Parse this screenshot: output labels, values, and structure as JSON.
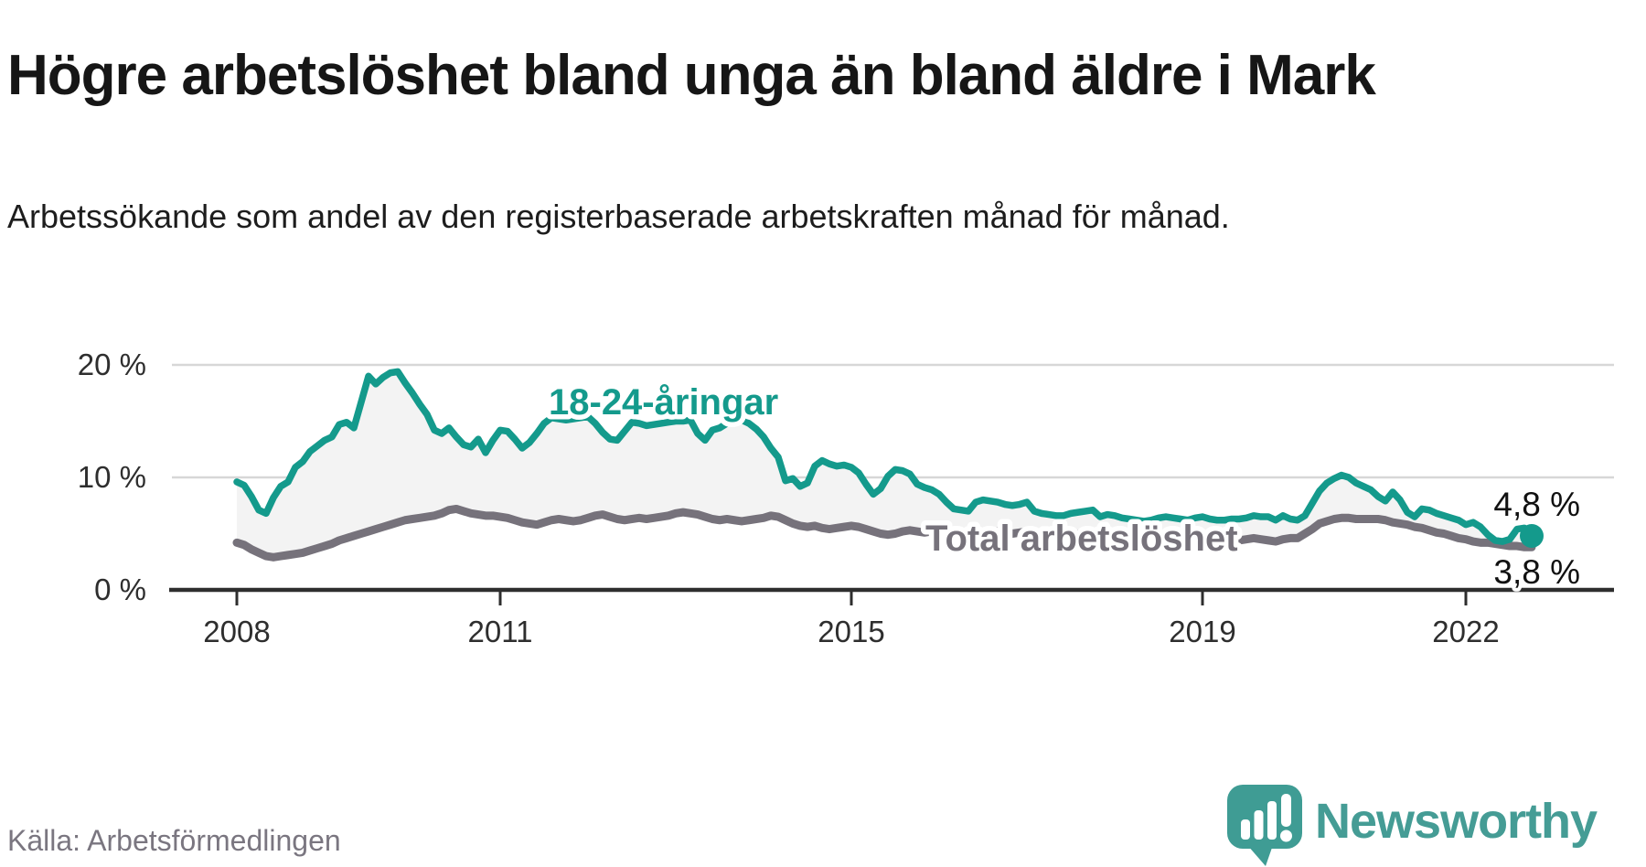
{
  "header": {
    "title": "Högre arbetslöshet bland unga än bland äldre i Mark",
    "subtitle": "Arbetssökande som andel av den registerbaserade arbetskraften månad för månad."
  },
  "source": {
    "label": "Källa: Arbetsförmedlingen"
  },
  "branding": {
    "name": "Newsworthy",
    "logo_icon": "speech-bubble-bar-chart",
    "text_color": "#459c95",
    "bubble_color": "#3f9c94"
  },
  "chart_data": {
    "type": "line",
    "unit": "percent",
    "frequency": "monthly",
    "period_start": "2008-01",
    "period_end": "2022-10",
    "grid": "horizontal",
    "ylim": [
      0,
      21.5
    ],
    "y_ticks": [
      "0 %",
      "10 %",
      "20 %"
    ],
    "y_tick_values": [
      0,
      10,
      20
    ],
    "x_ticks": [
      "2008",
      "2011",
      "2015",
      "2019",
      "2022"
    ],
    "area_fill_between": "#f3f3f3",
    "grid_color": "#d7d7d7",
    "axis_color": "#2e2e2e",
    "series": [
      {
        "name": "18-24-åringar",
        "color": "#149a8c",
        "end_label": "4,8 %",
        "end_value": 4.8,
        "values": [
          9.6,
          9.3,
          8.3,
          7.1,
          6.8,
          8.2,
          9.2,
          9.6,
          10.9,
          11.4,
          12.3,
          12.8,
          13.3,
          13.6,
          14.7,
          14.9,
          14.4,
          16.7,
          19.0,
          18.3,
          18.9,
          19.3,
          19.4,
          18.4,
          17.5,
          16.5,
          15.6,
          14.2,
          13.9,
          14.4,
          13.6,
          12.9,
          12.7,
          13.4,
          12.2,
          13.3,
          14.2,
          14.1,
          13.4,
          12.6,
          13.1,
          13.9,
          14.8,
          15.3,
          15.2,
          15.1,
          15.2,
          15.3,
          15.4,
          14.8,
          14.0,
          13.4,
          13.3,
          14.1,
          14.9,
          14.8,
          14.6,
          14.7,
          14.8,
          14.9,
          15.0,
          15.0,
          15.1,
          13.9,
          13.3,
          14.2,
          14.4,
          14.8,
          15.0,
          15.1,
          14.8,
          14.3,
          13.6,
          12.6,
          11.8,
          9.7,
          9.9,
          9.2,
          9.5,
          11.0,
          11.5,
          11.2,
          11.0,
          11.1,
          10.9,
          10.4,
          9.4,
          8.5,
          9.0,
          10.1,
          10.7,
          10.6,
          10.3,
          9.4,
          9.1,
          8.9,
          8.5,
          7.8,
          7.2,
          7.1,
          7.0,
          7.8,
          8.0,
          7.9,
          7.8,
          7.6,
          7.5,
          7.6,
          7.8,
          7.0,
          6.8,
          6.7,
          6.6,
          6.6,
          6.8,
          6.9,
          7.0,
          7.1,
          6.5,
          6.7,
          6.6,
          6.4,
          6.3,
          6.2,
          6.1,
          6.2,
          6.4,
          6.5,
          6.4,
          6.3,
          6.2,
          6.4,
          6.5,
          6.3,
          6.2,
          6.2,
          6.3,
          6.3,
          6.4,
          6.6,
          6.5,
          6.5,
          6.2,
          6.6,
          6.3,
          6.2,
          6.6,
          7.7,
          8.8,
          9.5,
          9.9,
          10.2,
          10.0,
          9.5,
          9.2,
          8.9,
          8.3,
          7.9,
          8.7,
          8.0,
          6.9,
          6.5,
          7.2,
          7.1,
          6.8,
          6.6,
          6.4,
          6.2,
          5.8,
          6.0,
          5.6,
          4.9,
          4.4,
          4.3,
          4.5,
          5.4,
          5.5,
          4.8
        ]
      },
      {
        "name": "Total arbetslöshet",
        "color": "#76727b",
        "end_label": "3,8 %",
        "end_value": 3.8,
        "values": [
          4.2,
          4.0,
          3.6,
          3.3,
          3.0,
          2.9,
          3.0,
          3.1,
          3.2,
          3.3,
          3.5,
          3.7,
          3.9,
          4.1,
          4.4,
          4.6,
          4.8,
          5.0,
          5.2,
          5.4,
          5.6,
          5.8,
          6.0,
          6.2,
          6.3,
          6.4,
          6.5,
          6.6,
          6.8,
          7.1,
          7.2,
          7.0,
          6.8,
          6.7,
          6.6,
          6.6,
          6.5,
          6.4,
          6.2,
          6.0,
          5.9,
          5.8,
          6.0,
          6.2,
          6.3,
          6.2,
          6.1,
          6.2,
          6.4,
          6.6,
          6.7,
          6.5,
          6.3,
          6.2,
          6.3,
          6.4,
          6.3,
          6.4,
          6.5,
          6.6,
          6.8,
          6.9,
          6.8,
          6.7,
          6.5,
          6.3,
          6.2,
          6.3,
          6.2,
          6.1,
          6.2,
          6.3,
          6.4,
          6.6,
          6.5,
          6.2,
          5.9,
          5.7,
          5.6,
          5.7,
          5.5,
          5.4,
          5.5,
          5.6,
          5.7,
          5.6,
          5.4,
          5.2,
          5.0,
          4.9,
          5.0,
          5.2,
          5.3,
          5.2,
          5.1,
          5.2,
          5.3,
          5.2,
          5.0,
          4.9,
          4.8,
          4.7,
          4.9,
          5.1,
          5.2,
          5.1,
          5.0,
          5.1,
          5.2,
          5.1,
          5.0,
          4.9,
          4.8,
          4.7,
          4.8,
          5.0,
          5.1,
          5.0,
          4.9,
          5.0,
          5.0,
          4.9,
          4.8,
          4.7,
          4.6,
          4.5,
          4.6,
          4.7,
          4.6,
          4.5,
          4.5,
          4.6,
          4.7,
          4.6,
          4.5,
          4.4,
          4.3,
          4.4,
          4.5,
          4.6,
          4.5,
          4.4,
          4.3,
          4.5,
          4.6,
          4.6,
          5.0,
          5.4,
          5.9,
          6.1,
          6.3,
          6.4,
          6.4,
          6.3,
          6.3,
          6.3,
          6.3,
          6.2,
          6.0,
          5.9,
          5.8,
          5.6,
          5.5,
          5.3,
          5.1,
          5.0,
          4.8,
          4.6,
          4.5,
          4.3,
          4.2,
          4.2,
          4.1,
          4.0,
          3.9,
          3.9,
          3.8,
          3.8
        ]
      }
    ]
  }
}
